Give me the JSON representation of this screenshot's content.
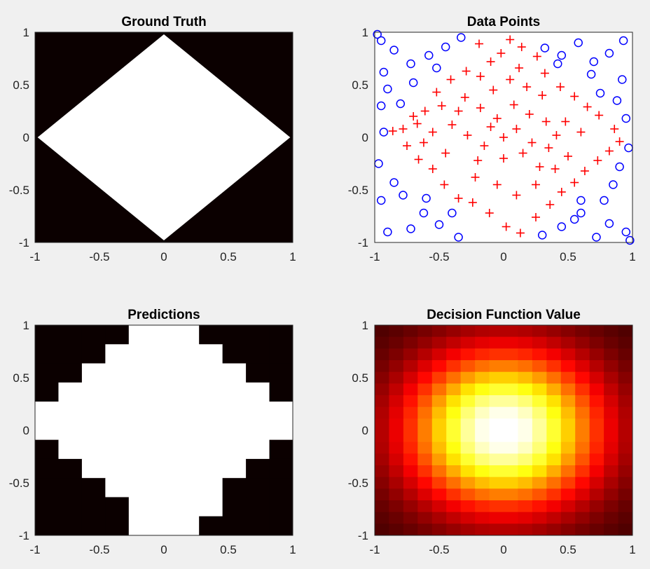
{
  "colors": {
    "figure_bg": "#f0f0f0",
    "region_in": "#ffffff",
    "region_out": "#0b0000",
    "positive_marker": "#ff0000",
    "negative_marker": "#0000ff"
  },
  "chart_data": [
    {
      "id": "ground_truth",
      "type": "heatmap",
      "title": "Ground Truth",
      "xlim": [
        -1,
        1
      ],
      "ylim": [
        -1,
        1
      ],
      "xticks": [
        "-1",
        "-0.5",
        "0",
        "0.5",
        "1"
      ],
      "yticks": [
        "1",
        "0.5",
        "0",
        "-0.5",
        "-1"
      ],
      "colormap": "gray",
      "region": "|x| + |y| <= 0.98 shown white, else black",
      "grid_resolution": 100
    },
    {
      "id": "data_points",
      "type": "scatter",
      "title": "Data Points",
      "xlim": [
        -1,
        1
      ],
      "ylim": [
        -1,
        1
      ],
      "xticks": [
        "-1",
        "-0.5",
        "0",
        "0.5",
        "1"
      ],
      "yticks": [
        "1",
        "0.5",
        "0",
        "-0.5",
        "-1"
      ],
      "series": [
        {
          "marker": "+",
          "color": "#ff0000",
          "points": [
            [
              -0.19,
              0.89
            ],
            [
              -0.1,
              0.72
            ],
            [
              0.05,
              0.93
            ],
            [
              0.14,
              0.86
            ],
            [
              0.26,
              0.77
            ],
            [
              0.32,
              0.61
            ],
            [
              -0.29,
              0.63
            ],
            [
              -0.41,
              0.55
            ],
            [
              -0.52,
              0.43
            ],
            [
              -0.48,
              0.3
            ],
            [
              -0.61,
              0.25
            ],
            [
              -0.67,
              0.13
            ],
            [
              -0.78,
              0.08
            ],
            [
              -0.86,
              0.06
            ],
            [
              -0.75,
              -0.08
            ],
            [
              -0.66,
              -0.21
            ],
            [
              -0.55,
              -0.3
            ],
            [
              -0.46,
              -0.45
            ],
            [
              -0.35,
              -0.58
            ],
            [
              -0.24,
              -0.62
            ],
            [
              -0.11,
              -0.72
            ],
            [
              0.02,
              -0.85
            ],
            [
              0.13,
              -0.91
            ],
            [
              0.25,
              -0.76
            ],
            [
              0.36,
              -0.64
            ],
            [
              0.45,
              -0.52
            ],
            [
              0.55,
              -0.43
            ],
            [
              0.63,
              -0.32
            ],
            [
              0.73,
              -0.22
            ],
            [
              0.82,
              -0.13
            ],
            [
              0.9,
              -0.04
            ],
            [
              0.86,
              0.08
            ],
            [
              0.74,
              0.21
            ],
            [
              0.65,
              0.29
            ],
            [
              0.55,
              0.39
            ],
            [
              0.44,
              0.48
            ],
            [
              -0.3,
              0.38
            ],
            [
              -0.18,
              0.28
            ],
            [
              -0.05,
              0.18
            ],
            [
              0.08,
              0.31
            ],
            [
              0.2,
              0.22
            ],
            [
              0.33,
              0.15
            ],
            [
              0.41,
              0.02
            ],
            [
              -0.4,
              0.12
            ],
            [
              -0.28,
              0.02
            ],
            [
              -0.15,
              -0.08
            ],
            [
              0.0,
              -0.2
            ],
            [
              0.15,
              -0.15
            ],
            [
              0.28,
              -0.28
            ],
            [
              -0.22,
              -0.38
            ],
            [
              -0.05,
              -0.45
            ],
            [
              0.1,
              -0.55
            ],
            [
              0.25,
              -0.45
            ],
            [
              0.4,
              -0.3
            ],
            [
              0.5,
              -0.18
            ],
            [
              0.6,
              0.05
            ],
            [
              -0.55,
              0.05
            ],
            [
              -0.45,
              -0.15
            ],
            [
              -0.35,
              0.25
            ],
            [
              0.05,
              0.55
            ],
            [
              -0.08,
              0.45
            ],
            [
              0.18,
              0.48
            ],
            [
              0.3,
              0.4
            ],
            [
              -0.18,
              0.58
            ],
            [
              0.12,
              0.66
            ],
            [
              -0.02,
              0.8
            ],
            [
              0.0,
              0.0
            ],
            [
              0.1,
              0.08
            ],
            [
              -0.1,
              0.1
            ],
            [
              0.22,
              -0.05
            ],
            [
              -0.2,
              -0.22
            ],
            [
              0.35,
              -0.1
            ],
            [
              0.48,
              0.15
            ],
            [
              -0.62,
              -0.05
            ],
            [
              -0.7,
              0.2
            ]
          ]
        },
        {
          "marker": "o",
          "color": "#0000ff",
          "points": [
            [
              -0.95,
              0.92
            ],
            [
              -0.85,
              0.83
            ],
            [
              -0.72,
              0.7
            ],
            [
              -0.58,
              0.78
            ],
            [
              -0.45,
              0.86
            ],
            [
              -0.33,
              0.95
            ],
            [
              -0.93,
              0.62
            ],
            [
              -0.9,
              0.46
            ],
            [
              -0.95,
              0.3
            ],
            [
              -0.93,
              0.05
            ],
            [
              -0.97,
              -0.25
            ],
            [
              -0.85,
              -0.43
            ],
            [
              -0.78,
              -0.55
            ],
            [
              -0.62,
              -0.72
            ],
            [
              -0.5,
              -0.83
            ],
            [
              -0.35,
              -0.95
            ],
            [
              -0.9,
              -0.9
            ],
            [
              -0.72,
              -0.87
            ],
            [
              -0.95,
              -0.6
            ],
            [
              0.32,
              0.85
            ],
            [
              0.45,
              0.78
            ],
            [
              0.58,
              0.9
            ],
            [
              0.7,
              0.72
            ],
            [
              0.82,
              0.8
            ],
            [
              0.93,
              0.92
            ],
            [
              0.92,
              0.55
            ],
            [
              0.88,
              0.35
            ],
            [
              0.95,
              0.18
            ],
            [
              0.97,
              -0.1
            ],
            [
              0.9,
              -0.28
            ],
            [
              0.85,
              -0.45
            ],
            [
              0.78,
              -0.6
            ],
            [
              0.6,
              -0.72
            ],
            [
              0.45,
              -0.85
            ],
            [
              0.3,
              -0.93
            ],
            [
              0.95,
              -0.9
            ],
            [
              0.82,
              -0.82
            ],
            [
              0.72,
              -0.95
            ],
            [
              0.98,
              -0.98
            ],
            [
              -0.98,
              0.98
            ],
            [
              0.68,
              0.6
            ],
            [
              -0.7,
              0.52
            ],
            [
              -0.8,
              0.32
            ],
            [
              0.75,
              0.42
            ],
            [
              -0.6,
              -0.58
            ],
            [
              0.6,
              -0.6
            ],
            [
              -0.4,
              -0.72
            ],
            [
              0.42,
              0.7
            ],
            [
              -0.52,
              0.66
            ],
            [
              0.55,
              -0.78
            ]
          ]
        }
      ]
    },
    {
      "id": "predictions",
      "type": "heatmap",
      "title": "Predictions",
      "xlim": [
        -1,
        1
      ],
      "ylim": [
        -1,
        1
      ],
      "xticks": [
        "-1",
        "-0.5",
        "0",
        "0.5",
        "1"
      ],
      "yticks": [
        "1",
        "0.5",
        "0",
        "-0.5",
        "-1"
      ],
      "colormap": "gray",
      "grid_resolution": 11,
      "rows_top_to_bottom": [
        [
          0,
          0,
          0,
          0,
          1,
          1,
          1,
          0,
          0,
          0,
          0
        ],
        [
          0,
          0,
          0,
          1,
          1,
          1,
          1,
          1,
          0,
          0,
          0
        ],
        [
          0,
          0,
          1,
          1,
          1,
          1,
          1,
          1,
          1,
          0,
          0
        ],
        [
          0,
          1,
          1,
          1,
          1,
          1,
          1,
          1,
          1,
          1,
          0
        ],
        [
          1,
          1,
          1,
          1,
          1,
          1,
          1,
          1,
          1,
          1,
          1
        ],
        [
          1,
          1,
          1,
          1,
          1,
          1,
          1,
          1,
          1,
          1,
          1
        ],
        [
          0,
          1,
          1,
          1,
          1,
          1,
          1,
          1,
          1,
          1,
          0
        ],
        [
          0,
          0,
          1,
          1,
          1,
          1,
          1,
          1,
          1,
          0,
          0
        ],
        [
          0,
          0,
          0,
          1,
          1,
          1,
          1,
          1,
          0,
          0,
          0
        ],
        [
          0,
          0,
          0,
          0,
          1,
          1,
          1,
          1,
          0,
          0,
          0
        ],
        [
          0,
          0,
          0,
          0,
          1,
          1,
          1,
          0,
          0,
          0,
          0
        ]
      ]
    },
    {
      "id": "decision_function",
      "type": "heatmap",
      "title": "Decision Function Value",
      "xlim": [
        -1,
        1
      ],
      "ylim": [
        -1,
        1
      ],
      "xticks": [
        "-1",
        "-0.5",
        "0",
        "0.5",
        "1"
      ],
      "yticks": [
        "1",
        "0.5",
        "0",
        "-0.5",
        "-1"
      ],
      "colormap": "hot",
      "grid_resolution": 18,
      "peak": [
        0.0,
        0.0
      ]
    }
  ]
}
